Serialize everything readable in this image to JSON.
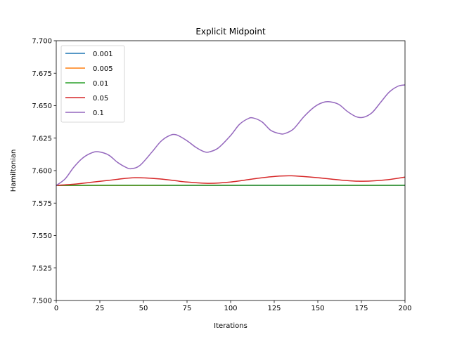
{
  "chart_data": {
    "type": "line",
    "title": "Explicit Midpoint",
    "xlabel": "Iterations",
    "ylabel": "Hamiltonian",
    "xlim": [
      0,
      200
    ],
    "ylim": [
      7.5,
      7.7
    ],
    "xticks": [
      0,
      25,
      50,
      75,
      100,
      125,
      150,
      175,
      200
    ],
    "xtick_labels": [
      "0",
      "25",
      "50",
      "75",
      "100",
      "125",
      "150",
      "175",
      "200"
    ],
    "yticks": [
      7.5,
      7.525,
      7.55,
      7.575,
      7.6,
      7.625,
      7.65,
      7.675,
      7.7
    ],
    "ytick_labels": [
      "7.500",
      "7.525",
      "7.550",
      "7.575",
      "7.600",
      "7.625",
      "7.650",
      "7.675",
      "7.700"
    ],
    "grid": false,
    "legend_position": "top-left",
    "series": [
      {
        "name": "0.001",
        "color": "#1f77b4",
        "x": [
          0,
          25,
          50,
          75,
          100,
          125,
          150,
          175,
          200
        ],
        "y": [
          7.5886,
          7.5886,
          7.5886,
          7.5886,
          7.5886,
          7.5886,
          7.5886,
          7.5886,
          7.5886
        ]
      },
      {
        "name": "0.005",
        "color": "#ff7f0e",
        "x": [
          0,
          25,
          50,
          75,
          100,
          125,
          150,
          175,
          200
        ],
        "y": [
          7.5886,
          7.5886,
          7.5886,
          7.5887,
          7.5887,
          7.5887,
          7.5887,
          7.5887,
          7.5887
        ]
      },
      {
        "name": "0.01",
        "color": "#2ca02c",
        "x": [
          0,
          25,
          50,
          75,
          100,
          125,
          150,
          175,
          200
        ],
        "y": [
          7.5886,
          7.5887,
          7.5887,
          7.5887,
          7.5887,
          7.5888,
          7.5887,
          7.5887,
          7.5888
        ]
      },
      {
        "name": "0.05",
        "color": "#d62728",
        "x": [
          0,
          10,
          20,
          30,
          45,
          60,
          75,
          88,
          100,
          115,
          125,
          135,
          150,
          165,
          176,
          190,
          200
        ],
        "y": [
          7.5886,
          7.5895,
          7.591,
          7.5925,
          7.5945,
          7.5935,
          7.5912,
          7.5902,
          7.5912,
          7.594,
          7.5955,
          7.596,
          7.5945,
          7.5925,
          7.5918,
          7.593,
          7.595
        ]
      },
      {
        "name": "0.1",
        "color": "#9467bd",
        "x": [
          0,
          5,
          10,
          15,
          20,
          24,
          30,
          35,
          40,
          43,
          48,
          55,
          60,
          65,
          69,
          75,
          80,
          85,
          88,
          93,
          100,
          105,
          110,
          113,
          118,
          123,
          128,
          131,
          136,
          142,
          148,
          153,
          157,
          162,
          167,
          172,
          176,
          181,
          186,
          191,
          196,
          200
        ],
        "y": [
          7.5886,
          7.5935,
          7.6025,
          7.6095,
          7.6135,
          7.6145,
          7.612,
          7.6065,
          7.6025,
          7.6015,
          7.604,
          7.6145,
          7.6225,
          7.627,
          7.6275,
          7.623,
          7.618,
          7.6145,
          7.6145,
          7.6175,
          7.627,
          7.6355,
          7.64,
          7.6405,
          7.6375,
          7.631,
          7.6285,
          7.6285,
          7.632,
          7.6415,
          7.649,
          7.6525,
          7.653,
          7.651,
          7.6455,
          7.6415,
          7.641,
          7.6445,
          7.6525,
          7.6605,
          7.665,
          7.666
        ]
      }
    ]
  }
}
